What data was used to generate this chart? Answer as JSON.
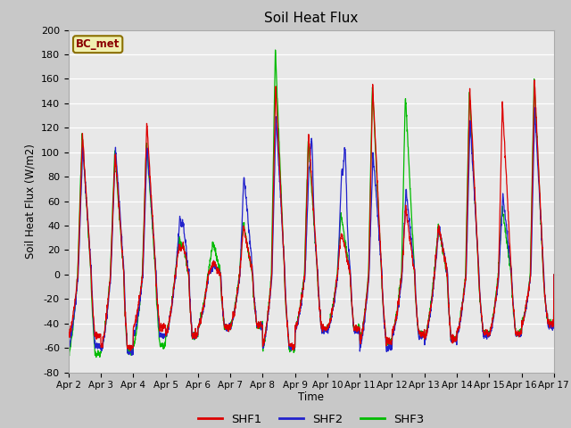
{
  "title": "Soil Heat Flux",
  "ylabel": "Soil Heat Flux (W/m2)",
  "xlabel": "Time",
  "ylim": [
    -80,
    200
  ],
  "fig_bg": "#c8c8c8",
  "plot_bg": "#e8e8e8",
  "annotation_text": "BC_met",
  "annotation_color": "#8B0000",
  "annotation_bg": "#f0f0b0",
  "annotation_border": "#8B7000",
  "colors": {
    "SHF1": "#dd0000",
    "SHF2": "#2222cc",
    "SHF3": "#00bb00"
  },
  "linewidth": 0.9,
  "x_tick_labels": [
    "Apr 2",
    "Apr 3",
    "Apr 4",
    "Apr 5",
    "Apr 6",
    "Apr 7",
    "Apr 8",
    "Apr 9",
    "Apr 10",
    "Apr 11",
    "Apr 12",
    "Apr 13",
    "Apr 14",
    "Apr 15",
    "Apr 16",
    "Apr 17"
  ],
  "n_days": 15,
  "pts_per_day": 144
}
